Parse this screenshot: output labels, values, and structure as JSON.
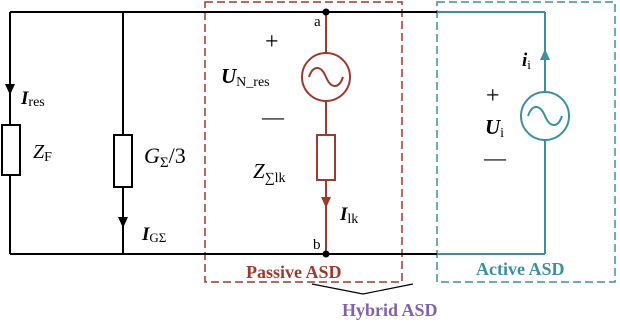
{
  "colors": {
    "wire": "#000000",
    "passive": "#9a3b30",
    "active": "#3d8fa0",
    "hybrid": "#7f63a6"
  },
  "nodes": {
    "top": "a",
    "bottom": "b"
  },
  "currents": {
    "res": {
      "main": "I",
      "sub": "res"
    },
    "g": {
      "main": "I",
      "sub": "GΣ"
    },
    "lk": {
      "main": "I",
      "sub": "lk"
    },
    "i": {
      "main": "i",
      "sub": "i"
    }
  },
  "components": {
    "zf": {
      "main": "Z",
      "sub": "F"
    },
    "gsum": {
      "main": "G",
      "sub": "Σ",
      "tail": "/3"
    },
    "zsum": {
      "main": "Z",
      "sub": "∑lk"
    }
  },
  "sources": {
    "neutral": {
      "main": "U",
      "sub": "N_res",
      "plus": "+",
      "minus": "—"
    },
    "active": {
      "main": "U",
      "sub": "i",
      "plus": "+",
      "minus": "—"
    }
  },
  "labels": {
    "passive": "Passive ASD",
    "active": "Active ASD",
    "hybrid": "Hybrid ASD"
  }
}
